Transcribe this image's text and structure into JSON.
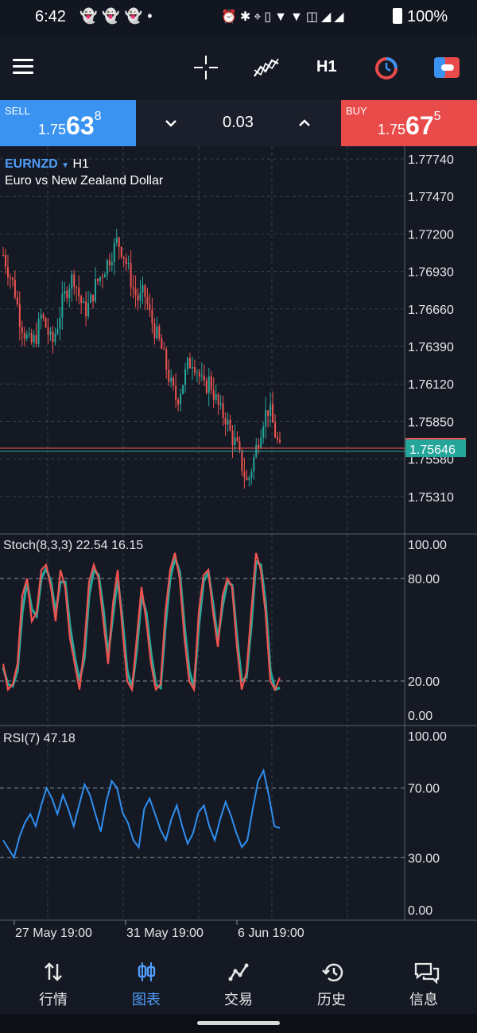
{
  "status_bar": {
    "time": "6:42",
    "notification_icons": [
      "snapchat-icon",
      "snapchat-icon",
      "snapchat-icon",
      "dot-icon"
    ],
    "system_icons": [
      "alarm-icon",
      "bluetooth-icon",
      "location-icon",
      "vibrate-icon",
      "wifi-icon",
      "wifi-icon",
      "volte-icon",
      "signal-icon",
      "signal-icon"
    ],
    "battery": "100%"
  },
  "toolbar": {
    "timeframe": "H1",
    "icons": [
      "menu-icon",
      "crosshair-icon",
      "indicators-icon",
      "timeframe-clock-icon",
      "trade-icon"
    ]
  },
  "quote": {
    "sell": {
      "label": "SELL",
      "prefix": "1.75",
      "big": "63",
      "sup": "8"
    },
    "buy": {
      "label": "BUY",
      "prefix": "1.75",
      "big": "67",
      "sup": "5"
    },
    "volume": "0.03"
  },
  "chart": {
    "symbol": "EURNZD",
    "timeframe": "H1",
    "description": "Euro vs New Zealand Dollar",
    "current_price": "1.75646",
    "stoch_label": "Stoch(8,3,3) 22.54 16.15",
    "rsi_label": "RSI(7) 47.18",
    "time_labels": [
      "27 May 19:00",
      "31 May 19:00",
      "6 Jun 19:00"
    ]
  },
  "bottom_nav": [
    {
      "label": "行情",
      "icon": "quotes-icon",
      "active": false
    },
    {
      "label": "图表",
      "icon": "chart-icon",
      "active": true
    },
    {
      "label": "交易",
      "icon": "trade-icon",
      "active": false
    },
    {
      "label": "历史",
      "icon": "history-icon",
      "active": false
    },
    {
      "label": "信息",
      "icon": "messages-icon",
      "active": false
    }
  ],
  "colors": {
    "background": "#151924",
    "sell": "#3a93f0",
    "buy": "#e94b4b",
    "bull": "#26a69a",
    "bear": "#ef5350",
    "rsi": "#2f8ff0",
    "accent": "#4f9cf9"
  },
  "chart_data": {
    "type": "candlestick",
    "price_axis_ticks": [
      "1.77740",
      "1.77470",
      "1.77200",
      "1.76930",
      "1.76660",
      "1.76390",
      "1.76120",
      "1.75850",
      "1.75580",
      "1.75310"
    ],
    "close_path": [
      1.7705,
      1.7693,
      1.7682,
      1.766,
      1.7648,
      1.764,
      1.7645,
      1.7661,
      1.7652,
      1.764,
      1.7655,
      1.7672,
      1.7683,
      1.769,
      1.7675,
      1.7664,
      1.767,
      1.7683,
      1.769,
      1.7698,
      1.7706,
      1.7715,
      1.7708,
      1.7695,
      1.768,
      1.7672,
      1.7678,
      1.7662,
      1.765,
      1.764,
      1.7625,
      1.761,
      1.76,
      1.7612,
      1.7625,
      1.763,
      1.762,
      1.7608,
      1.7615,
      1.7603,
      1.7592,
      1.7588,
      1.7575,
      1.7568,
      1.7553,
      1.754,
      1.7555,
      1.7572,
      1.7588,
      1.7595,
      1.7578,
      1.7564
    ],
    "stoch": {
      "name": "Stoch(8,3,3)",
      "main": [
        30,
        15,
        18,
        30,
        70,
        80,
        55,
        60,
        85,
        88,
        75,
        55,
        85,
        75,
        45,
        30,
        15,
        40,
        78,
        88,
        80,
        55,
        30,
        65,
        85,
        50,
        20,
        15,
        45,
        75,
        55,
        30,
        15,
        18,
        60,
        85,
        95,
        80,
        45,
        20,
        15,
        60,
        82,
        85,
        60,
        40,
        70,
        80,
        75,
        40,
        15,
        25,
        60,
        95,
        85,
        60,
        20,
        15,
        22
      ],
      "signal": [
        28,
        18,
        17,
        26,
        60,
        78,
        62,
        58,
        80,
        86,
        78,
        60,
        78,
        78,
        52,
        34,
        20,
        33,
        70,
        85,
        82,
        62,
        35,
        58,
        80,
        56,
        26,
        16,
        38,
        70,
        60,
        36,
        18,
        16,
        52,
        80,
        92,
        84,
        52,
        26,
        16,
        52,
        78,
        84,
        65,
        44,
        64,
        78,
        76,
        46,
        20,
        22,
        52,
        90,
        88,
        66,
        26,
        15,
        16
      ],
      "last_main": 22.54,
      "last_signal": 16.15,
      "levels": [
        20,
        80
      ],
      "ylim": [
        0,
        100
      ]
    },
    "rsi": {
      "name": "RSI(7)",
      "values": [
        40,
        35,
        30,
        42,
        50,
        55,
        48,
        60,
        70,
        64,
        55,
        66,
        58,
        48,
        60,
        72,
        66,
        55,
        45,
        62,
        74,
        70,
        56,
        50,
        40,
        36,
        58,
        64,
        55,
        46,
        40,
        52,
        60,
        48,
        38,
        44,
        56,
        60,
        48,
        40,
        52,
        62,
        54,
        44,
        36,
        40,
        58,
        74,
        80,
        65,
        48,
        47
      ],
      "last": 47.18,
      "levels": [
        30,
        70
      ],
      "ylim": [
        0,
        100
      ]
    }
  }
}
